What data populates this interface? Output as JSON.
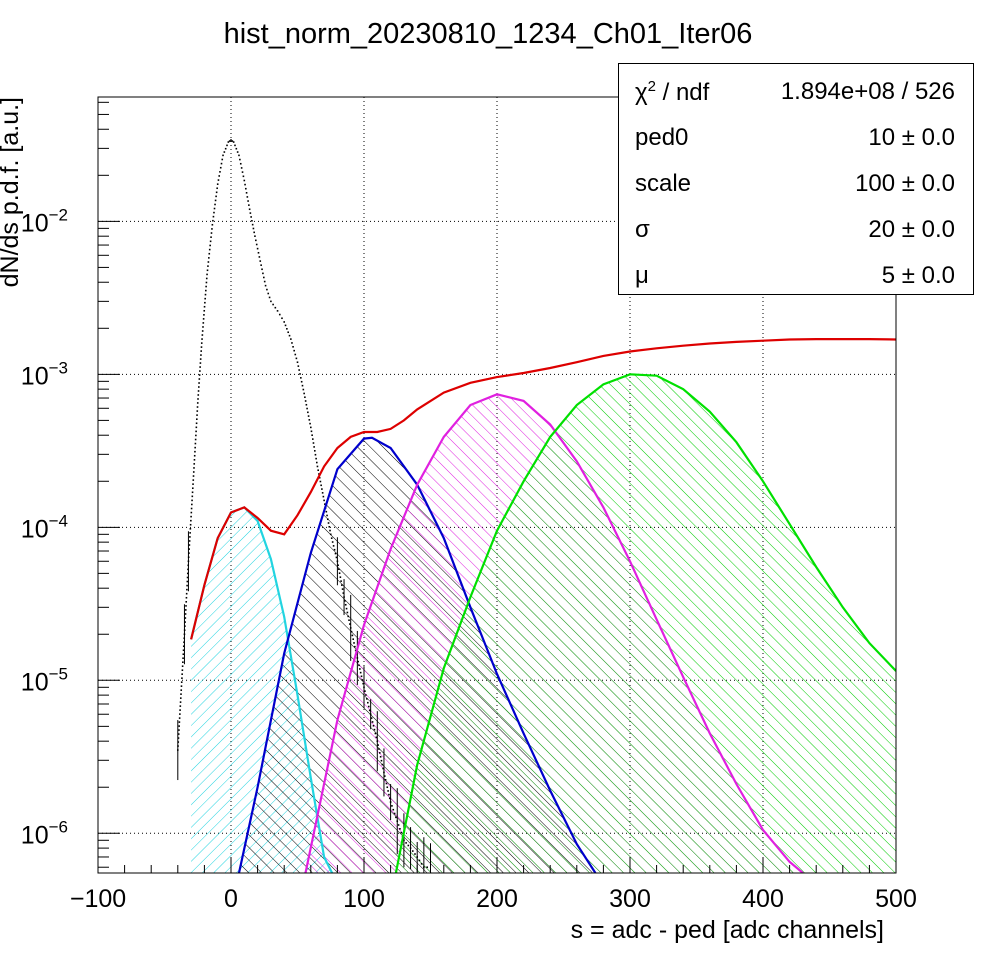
{
  "chart_data": {
    "type": "line",
    "title": "hist_norm_20230810_1234_Ch01_Iter06",
    "xlabel": "s = adc - ped [adc channels]",
    "ylabel": "dN/ds p.d.f. [a.u.]",
    "xlim": [
      -100,
      500
    ],
    "ylim": [
      5.5e-07,
      0.065
    ],
    "y_scale": "log",
    "grid": true,
    "x_ticks": [
      -100,
      0,
      100,
      200,
      300,
      400,
      500
    ],
    "x_tick_labels": [
      "−100",
      "0",
      "100",
      "200",
      "300",
      "400",
      "500"
    ],
    "y_ticks": [
      1e-06,
      1e-05,
      0.0001,
      0.001,
      0.01
    ],
    "y_tick_exponents": [
      "−6",
      "−5",
      "−4",
      "−3",
      "−2"
    ],
    "y_tick_base": "10",
    "series": [
      {
        "kind": "histogram",
        "color": "#000000",
        "x": [
          -40,
          -35,
          -32,
          -28,
          -25,
          -22,
          -18,
          -14,
          -10,
          -6,
          -2,
          0,
          2,
          6,
          10,
          14,
          18,
          22,
          26,
          30,
          35,
          40,
          45,
          50,
          55,
          60,
          65,
          70,
          75,
          80,
          85,
          90,
          95,
          100,
          105,
          110,
          115,
          120,
          125,
          130,
          135,
          140,
          145,
          150
        ],
        "y": [
          3.5e-06,
          2e-05,
          6e-05,
          0.00023,
          0.00065,
          0.0016,
          0.0045,
          0.0095,
          0.0175,
          0.027,
          0.033,
          0.034,
          0.033,
          0.027,
          0.0185,
          0.012,
          0.008,
          0.0055,
          0.0038,
          0.003,
          0.0026,
          0.0022,
          0.0017,
          0.0012,
          0.00075,
          0.00045,
          0.00025,
          0.00015,
          9e-05,
          6e-05,
          3.5e-05,
          2.2e-05,
          1.4e-05,
          9e-06,
          6e-06,
          4e-06,
          2.5e-06,
          1.6e-06,
          1.2e-06,
          9e-07,
          8e-07,
          7e-07,
          6e-07,
          6e-07
        ]
      },
      {
        "kind": "component",
        "color": "#22d4e0",
        "x": [
          -30,
          -20,
          -10,
          0,
          10,
          20,
          30,
          40,
          50,
          60,
          70,
          76
        ],
        "y": [
          1.85e-05,
          4.2e-05,
          8.5e-05,
          0.000125,
          0.000135,
          0.00011,
          6.2e-05,
          2.6e-05,
          8e-06,
          2.3e-06,
          7e-07,
          5.5e-07
        ]
      },
      {
        "kind": "component",
        "color": "#0000cc",
        "x": [
          6,
          20,
          40,
          60,
          80,
          100,
          106,
          120,
          140,
          160,
          180,
          200,
          220,
          240,
          260,
          274
        ],
        "y": [
          5.5e-07,
          2e-06,
          1.5e-05,
          6.8e-05,
          0.00024,
          0.00038,
          0.000385,
          0.00033,
          0.00019,
          8.5e-05,
          3e-05,
          1.1e-05,
          4.5e-06,
          1.9e-06,
          8.5e-07,
          5.5e-07
        ]
      },
      {
        "kind": "component",
        "color": "#e020e0",
        "x": [
          56,
          80,
          100,
          120,
          140,
          160,
          180,
          200,
          220,
          240,
          260,
          280,
          300,
          320,
          340,
          360,
          380,
          400,
          420,
          430
        ],
        "y": [
          5.5e-07,
          5.5e-06,
          2.3e-05,
          7.2e-05,
          0.00019,
          0.00039,
          0.00063,
          0.00074,
          0.00067,
          0.00047,
          0.00027,
          0.000135,
          6e-05,
          2.5e-05,
          1.05e-05,
          4.5e-06,
          2.1e-06,
          1.05e-06,
          6.5e-07,
          5.5e-07
        ]
      },
      {
        "kind": "component",
        "color": "#00e000",
        "x": [
          124,
          140,
          160,
          180,
          200,
          220,
          240,
          260,
          280,
          300,
          320,
          340,
          360,
          380,
          400,
          420,
          440,
          460,
          480,
          500
        ],
        "y": [
          5.5e-07,
          2.8e-06,
          1.2e-05,
          3.5e-05,
          9.5e-05,
          0.0002,
          0.00039,
          0.00063,
          0.00086,
          0.001,
          0.00098,
          0.0008,
          0.00057,
          0.00036,
          0.0002,
          0.000105,
          5.5e-05,
          3e-05,
          1.75e-05,
          1.15e-05
        ]
      },
      {
        "kind": "total-fit",
        "color": "#dd0000",
        "x": [
          -30,
          -20,
          -10,
          0,
          10,
          20,
          30,
          40,
          50,
          60,
          70,
          80,
          90,
          100,
          110,
          120,
          130,
          140,
          160,
          180,
          200,
          220,
          240,
          260,
          280,
          300,
          320,
          340,
          360,
          380,
          400,
          420,
          440,
          460,
          480,
          500
        ],
        "y": [
          1.85e-05,
          4.2e-05,
          8.5e-05,
          0.000125,
          0.000135,
          0.000115,
          9.5e-05,
          9e-05,
          0.00012,
          0.00017,
          0.00025,
          0.00033,
          0.00039,
          0.00042,
          0.00042,
          0.00044,
          0.0005,
          0.00059,
          0.00076,
          0.00088,
          0.00096,
          0.00102,
          0.0011,
          0.0012,
          0.00132,
          0.00141,
          0.00148,
          0.00154,
          0.00159,
          0.00163,
          0.00166,
          0.00169,
          0.0017,
          0.0017,
          0.0017,
          0.00169
        ]
      }
    ]
  },
  "stats_box": {
    "header_label_symbol": "χ",
    "header_label_sup": "2",
    "header_label_rest": " / ndf",
    "header_value": "1.894e+08 / 526",
    "rows": [
      {
        "label": "ped0",
        "value": "10 ± 0.0"
      },
      {
        "label": "scale",
        "value": "100 ± 0.0"
      },
      {
        "label": "σ",
        "value": "20 ± 0.0"
      },
      {
        "label": "μ",
        "value": "5 ± 0.0"
      }
    ]
  }
}
